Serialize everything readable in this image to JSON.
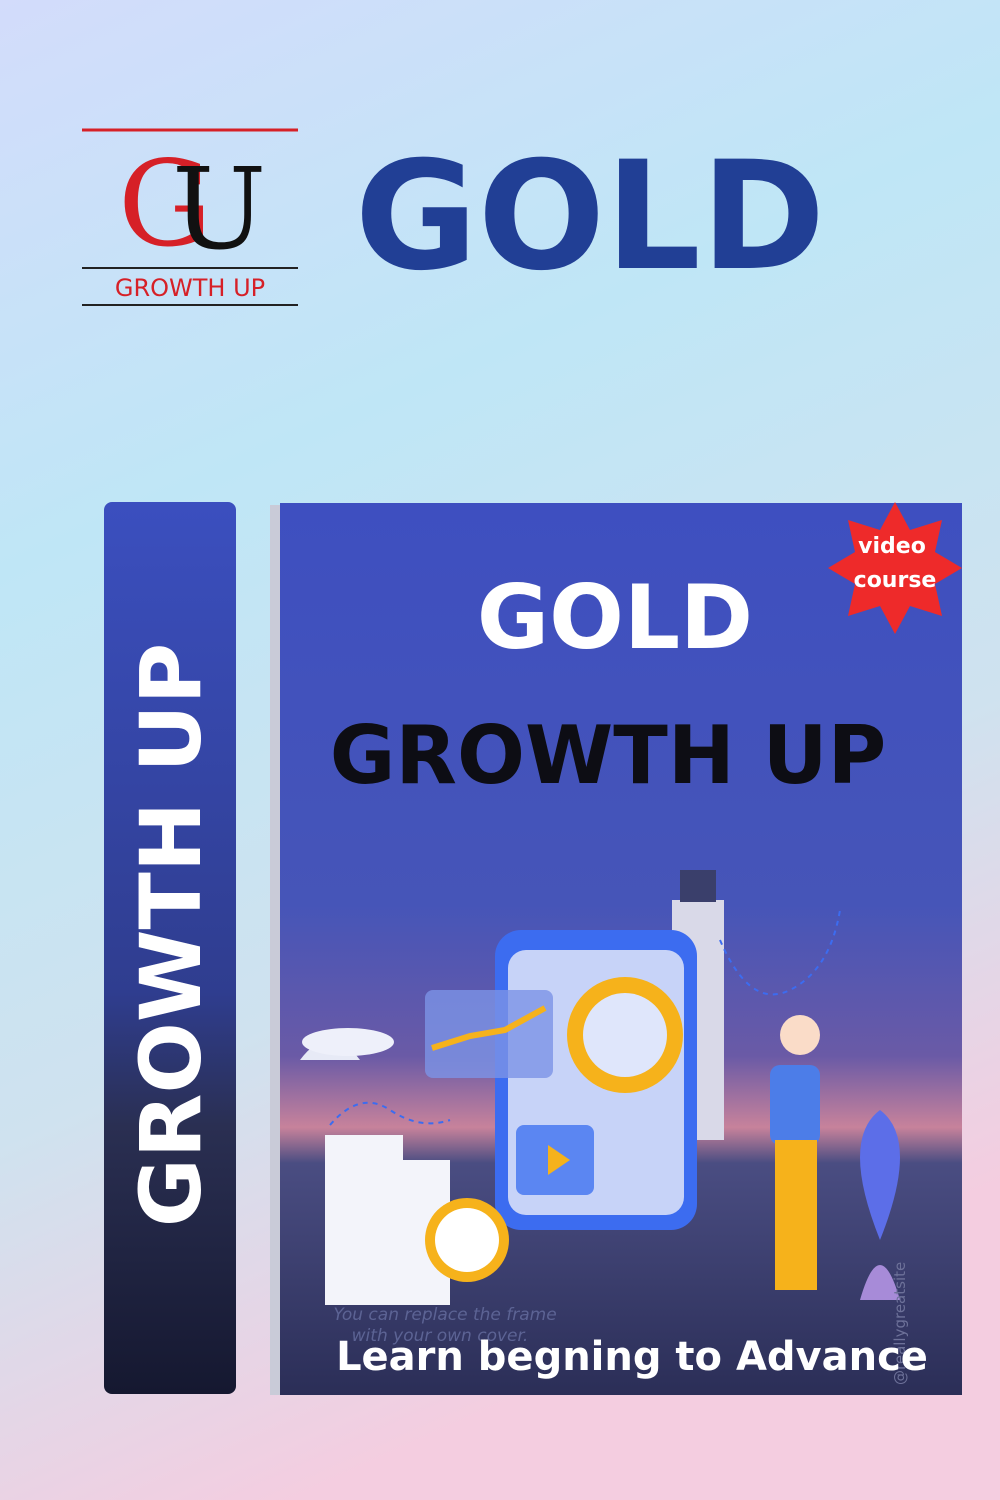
{
  "logo": {
    "letters": [
      "G",
      "U"
    ],
    "caption": "GROWTH UP"
  },
  "header": {
    "title": "GOLD"
  },
  "book": {
    "spine_text": "GROWTH UP",
    "cover": {
      "title": "GOLD",
      "subtitle": "GROWTH UP",
      "badge": [
        "video",
        "course"
      ],
      "watermark": [
        "You can replace the frame",
        "with your own cover."
      ],
      "handle": "@reallygreatsite",
      "tagline": "Learn begning to Advance"
    }
  }
}
